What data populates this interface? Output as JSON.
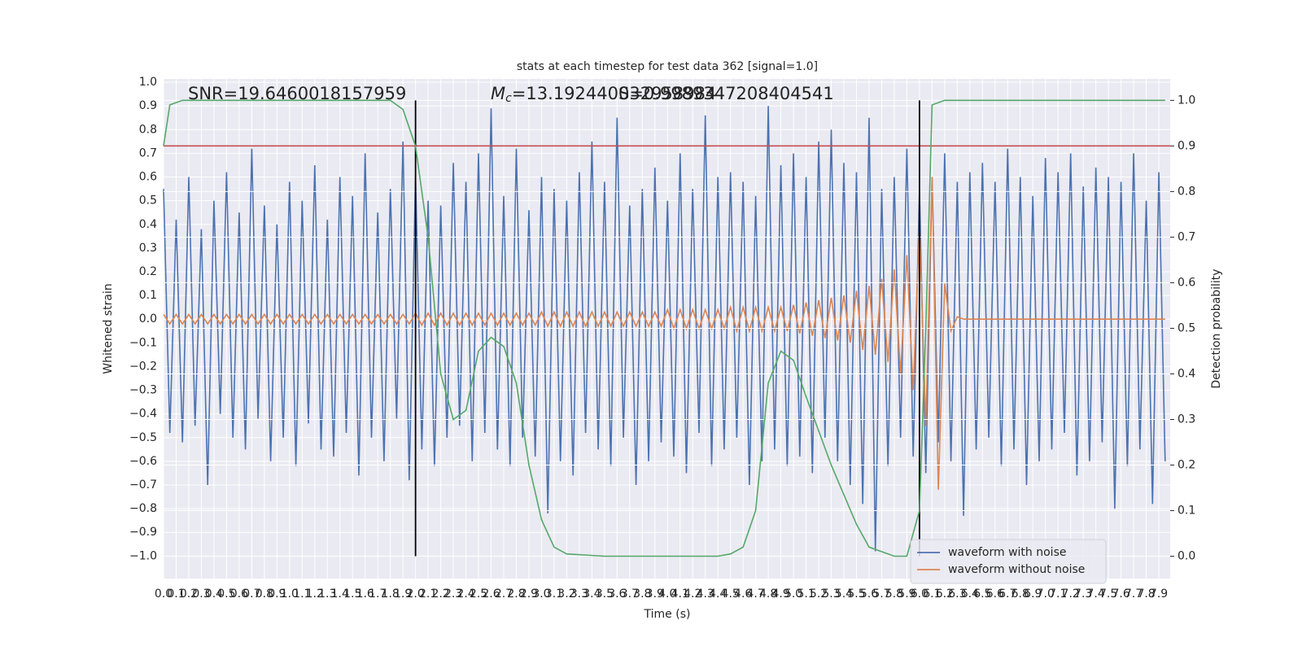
{
  "chart_data": {
    "type": "line",
    "title": "stats at each timestep for test data 362 [signal=1.0]",
    "annotations": [
      {
        "text": "SNR=19.6460018157959"
      },
      {
        "symbol": "M",
        "subscript": "c",
        "text": "=13.192440032958984"
      },
      {
        "text": "S=0.9989347208404541"
      }
    ],
    "xlabel": "Time (s)",
    "ylabel": "Whitened strain",
    "y2label": "Detection probability",
    "xlim": [
      0,
      7.99
    ],
    "ylim": [
      -1.095,
      1.014
    ],
    "y2lim": [
      -0.049,
      1.047
    ],
    "grid": true,
    "legend": "lower right",
    "xticks": [
      {
        "value": 0,
        "label": "0.0"
      },
      0.1,
      0.2,
      0.3,
      0.4,
      0.5,
      0.6,
      0.7,
      0.8,
      0.9,
      {
        "value": 1,
        "label": "1.0"
      },
      1.1,
      1.2,
      1.3,
      1.4,
      1.5,
      1.6,
      1.7,
      1.8,
      1.9,
      {
        "value": 2,
        "label": "2.0"
      },
      2.1,
      2.2,
      2.3,
      2.4,
      2.5,
      2.6,
      2.7,
      2.8,
      2.9,
      {
        "value": 3,
        "label": "3.0"
      },
      3.1,
      3.2,
      3.3,
      3.4,
      3.5,
      3.6,
      3.7,
      3.8,
      3.9,
      {
        "value": 4,
        "label": "4.0"
      },
      4.1,
      4.2,
      4.3,
      4.4,
      4.5,
      4.6,
      4.7,
      4.8,
      4.9,
      {
        "value": 5,
        "label": "5.0"
      },
      5.1,
      5.2,
      5.3,
      5.4,
      5.5,
      5.6,
      5.7,
      5.8,
      5.9,
      {
        "value": 6,
        "label": "6.0"
      },
      6.1,
      6.2,
      6.3,
      6.4,
      6.5,
      6.6,
      6.7,
      6.8,
      6.9,
      {
        "value": 7,
        "label": "7.0"
      },
      7.1,
      7.2,
      7.3,
      7.4,
      7.5,
      7.6,
      7.7,
      7.8,
      7.9
    ],
    "yticks": [
      {
        "value": -1,
        "label": "−1.0"
      },
      {
        "value": -0.9,
        "label": "−0.9"
      },
      {
        "value": -0.8,
        "label": "−0.8"
      },
      {
        "value": -0.7,
        "label": "−0.7"
      },
      {
        "value": -0.6,
        "label": "−0.6"
      },
      {
        "value": -0.5,
        "label": "−0.5"
      },
      {
        "value": -0.4,
        "label": "−0.4"
      },
      {
        "value": -0.3,
        "label": "−0.3"
      },
      {
        "value": -0.2,
        "label": "−0.2"
      },
      {
        "value": -0.1,
        "label": "−0.1"
      },
      {
        "value": 0,
        "label": "0.0"
      },
      0.1,
      0.2,
      0.3,
      0.4,
      0.5,
      0.6,
      0.7,
      0.8,
      0.9,
      {
        "value": 1,
        "label": "1.0"
      }
    ],
    "y2ticks": [
      {
        "value": 0,
        "label": "0.0"
      },
      0.1,
      0.2,
      0.3,
      0.4,
      0.5,
      0.6,
      0.7,
      0.8,
      0.9,
      {
        "value": 1,
        "label": "1.0"
      }
    ],
    "x": [
      0,
      0.05,
      0.1,
      0.15,
      0.2,
      0.25,
      0.3,
      0.35,
      0.4,
      0.45,
      0.5,
      0.55,
      0.6,
      0.65,
      0.7,
      0.75,
      0.8,
      0.85,
      0.9,
      0.95,
      1,
      1.05,
      1.1,
      1.15,
      1.2,
      1.25,
      1.3,
      1.35,
      1.4,
      1.45,
      1.5,
      1.55,
      1.6,
      1.65,
      1.7,
      1.75,
      1.8,
      1.85,
      1.9,
      1.95,
      2,
      2.05,
      2.1,
      2.15,
      2.2,
      2.25,
      2.3,
      2.35,
      2.4,
      2.45,
      2.5,
      2.55,
      2.6,
      2.65,
      2.7,
      2.75,
      2.8,
      2.85,
      2.9,
      2.95,
      3,
      3.05,
      3.1,
      3.15,
      3.2,
      3.25,
      3.3,
      3.35,
      3.4,
      3.45,
      3.5,
      3.55,
      3.6,
      3.65,
      3.7,
      3.75,
      3.8,
      3.85,
      3.9,
      3.95,
      4,
      4.05,
      4.1,
      4.15,
      4.2,
      4.25,
      4.3,
      4.35,
      4.4,
      4.45,
      4.5,
      4.55,
      4.6,
      4.65,
      4.7,
      4.75,
      4.8,
      4.85,
      4.9,
      4.95,
      5,
      5.05,
      5.1,
      5.15,
      5.2,
      5.25,
      5.3,
      5.35,
      5.4,
      5.45,
      5.5,
      5.55,
      5.6,
      5.65,
      5.7,
      5.75,
      5.8,
      5.85,
      5.9,
      5.95,
      6,
      6.05,
      6.1,
      6.15,
      6.2,
      6.25,
      6.3,
      6.35,
      6.4,
      6.45,
      6.5,
      6.55,
      6.6,
      6.65,
      6.7,
      6.75,
      6.8,
      6.85,
      6.9,
      6.95,
      7,
      7.05,
      7.1,
      7.15,
      7.2,
      7.25,
      7.3,
      7.35,
      7.4,
      7.45,
      7.5,
      7.55,
      7.6,
      7.65,
      7.7,
      7.75,
      7.8,
      7.85,
      7.9,
      7.95
    ],
    "series": [
      {
        "name": "waveform with noise",
        "color": "#4c72b0",
        "values": [
          0.55,
          -0.48,
          0.42,
          -0.52,
          0.6,
          -0.45,
          0.38,
          -0.7,
          0.5,
          -0.4,
          0.62,
          -0.5,
          0.45,
          -0.55,
          0.72,
          -0.42,
          0.48,
          -0.6,
          0.4,
          -0.5,
          0.58,
          -0.62,
          0.5,
          -0.44,
          0.65,
          -0.55,
          0.42,
          -0.58,
          0.6,
          -0.48,
          0.52,
          -0.66,
          0.7,
          -0.5,
          0.45,
          -0.6,
          0.55,
          -0.42,
          0.75,
          -0.68,
          0.6,
          -0.55,
          0.5,
          -0.62,
          0.48,
          -0.5,
          0.66,
          -0.45,
          0.58,
          -0.6,
          0.7,
          -0.48,
          0.89,
          -0.55,
          0.52,
          -0.62,
          0.72,
          -0.5,
          0.46,
          -0.58,
          0.6,
          -0.82,
          0.55,
          -0.6,
          0.5,
          -0.66,
          0.62,
          -0.48,
          0.75,
          -0.55,
          0.58,
          -0.62,
          0.85,
          -0.5,
          0.48,
          -0.7,
          0.55,
          -0.6,
          0.64,
          -0.52,
          0.5,
          -0.58,
          0.7,
          -0.65,
          0.55,
          -0.48,
          0.86,
          -0.62,
          0.6,
          -0.55,
          0.62,
          -0.5,
          0.58,
          -0.7,
          0.52,
          -0.6,
          0.9,
          -0.55,
          0.65,
          -0.62,
          0.7,
          -0.58,
          0.6,
          -0.65,
          0.75,
          -0.5,
          0.8,
          -0.6,
          0.66,
          -0.7,
          0.62,
          -0.78,
          0.85,
          -0.98,
          0.55,
          -0.62,
          0.6,
          -0.5,
          0.72,
          -0.58,
          0.55,
          -0.65,
          0.6,
          -0.52,
          0.7,
          -0.6,
          0.58,
          -0.83,
          0.62,
          -0.55,
          0.66,
          -0.5,
          0.58,
          -0.62,
          0.72,
          -0.55,
          0.6,
          -0.7,
          0.52,
          -0.6,
          0.68,
          -0.55,
          0.62,
          -0.48,
          0.7,
          -0.66,
          0.56,
          -0.6,
          0.64,
          -0.52,
          0.6,
          -0.8,
          0.58,
          -0.62,
          0.7,
          -0.55,
          0.5,
          -0.78,
          0.62,
          -0.6
        ]
      },
      {
        "name": "waveform without noise",
        "color": "#dd8452",
        "values": [
          0.02,
          -0.02,
          0.02,
          -0.02,
          0.02,
          -0.02,
          0.02,
          -0.02,
          0.02,
          -0.02,
          0.02,
          -0.02,
          0.02,
          -0.02,
          0.02,
          -0.02,
          0.02,
          -0.02,
          0.02,
          -0.02,
          0.02,
          -0.02,
          0.02,
          -0.02,
          0.02,
          -0.02,
          0.02,
          -0.02,
          0.02,
          -0.02,
          0.02,
          -0.02,
          0.02,
          -0.02,
          0.02,
          -0.02,
          0.02,
          -0.02,
          0.02,
          -0.02,
          0.025,
          -0.025,
          0.025,
          -0.025,
          0.025,
          -0.025,
          0.025,
          -0.025,
          0.025,
          -0.025,
          0.025,
          -0.025,
          0.025,
          -0.025,
          0.025,
          -0.025,
          0.025,
          -0.025,
          0.025,
          -0.025,
          0.03,
          -0.03,
          0.03,
          -0.03,
          0.03,
          -0.03,
          0.03,
          -0.03,
          0.03,
          -0.03,
          0.03,
          -0.03,
          0.03,
          -0.03,
          0.03,
          -0.03,
          0.03,
          -0.03,
          0.03,
          -0.03,
          0.04,
          -0.04,
          0.04,
          -0.04,
          0.04,
          -0.04,
          0.04,
          -0.04,
          0.04,
          -0.04,
          0.05,
          -0.05,
          0.05,
          -0.05,
          0.05,
          -0.05,
          0.05,
          -0.05,
          0.05,
          -0.05,
          0.06,
          -0.06,
          0.07,
          -0.07,
          0.08,
          -0.08,
          0.09,
          -0.09,
          0.1,
          -0.1,
          0.12,
          -0.13,
          0.14,
          -0.15,
          0.17,
          -0.18,
          0.21,
          -0.23,
          0.27,
          -0.3,
          0.4,
          -0.45,
          0.6,
          -0.72,
          0.15,
          -0.05,
          0.01,
          0,
          0,
          0,
          0,
          0,
          0,
          0,
          0,
          0,
          0,
          0,
          0,
          0,
          0,
          0,
          0,
          0,
          0,
          0,
          0,
          0,
          0,
          0,
          0,
          0,
          0,
          0,
          0,
          0,
          0,
          0,
          0,
          0
        ]
      },
      {
        "color": "#55a868",
        "axis": "y2",
        "x": [
          0,
          0.05,
          0.15,
          1.8,
          1.9,
          2,
          2.1,
          2.2,
          2.3,
          2.4,
          2.5,
          2.6,
          2.7,
          2.8,
          2.9,
          3,
          3.1,
          3.2,
          3.5,
          4,
          4.4,
          4.5,
          4.6,
          4.7,
          4.8,
          4.9,
          5,
          5.1,
          5.3,
          5.5,
          5.6,
          5.8,
          5.9,
          6,
          6.05,
          6.1,
          6.2,
          7.95
        ],
        "values": [
          0.9,
          0.99,
          1,
          1,
          0.98,
          0.9,
          0.7,
          0.4,
          0.3,
          0.32,
          0.45,
          0.48,
          0.46,
          0.38,
          0.2,
          0.08,
          0.02,
          0.005,
          0,
          0,
          0,
          0.005,
          0.02,
          0.1,
          0.38,
          0.45,
          0.43,
          0.35,
          0.2,
          0.07,
          0.02,
          0,
          0,
          0.1,
          0.5,
          0.99,
          1,
          1
        ]
      }
    ],
    "threshold": {
      "value": 0.9,
      "axis": "y2",
      "color": "#c44e52"
    },
    "vlines": {
      "x": [
        2.0,
        6.0
      ],
      "color": "#000000"
    }
  }
}
